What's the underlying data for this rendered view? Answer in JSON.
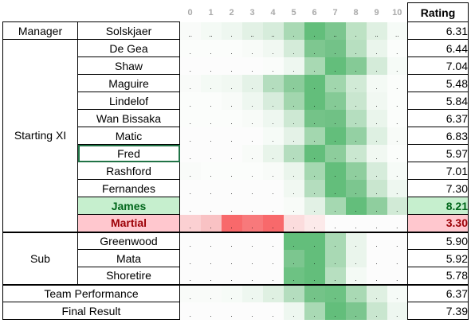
{
  "header": {
    "scores": [
      "0",
      "1",
      "2",
      "3",
      "4",
      "5",
      "6",
      "7",
      "8",
      "9",
      "10"
    ],
    "rating": "Rating"
  },
  "roles": {
    "manager": "Manager",
    "starting": "Starting XI",
    "sub": "Sub"
  },
  "rows": [
    {
      "name": "Solskjaer",
      "rating": "6.31",
      "marks": [
        "..",
        "..",
        ".",
        "..",
        "..",
        " .",
        ".",
        "..",
        ".",
        "..",
        ".."
      ],
      "colors": [
        "#f9fbf9",
        "#f4faf5",
        "#eef7f0",
        "#e2f1e5",
        "#d6ecdb",
        "#a9d9b4",
        "#63be7b",
        "#7cc68f",
        "#bde2c4",
        "#dff0e2",
        "#f6fbf7"
      ]
    },
    {
      "name": "De Gea",
      "rating": "6.44",
      "marks": [
        ".",
        ".",
        ".",
        ".",
        ".",
        ".",
        ".",
        ".",
        ".",
        ".",
        "."
      ],
      "colors": [
        "#fbfdfb",
        "#fbfdfb",
        "#fbfdfb",
        "#f8fbf8",
        "#f1f8f2",
        "#d4ebd9",
        "#7ec790",
        "#73c288",
        "#b7dfc0",
        "#eaf5ec",
        "#fbfdfb"
      ]
    },
    {
      "name": "Shaw",
      "rating": "7.04",
      "marks": [
        ".",
        ".",
        ".",
        ".",
        ".",
        ".",
        ".",
        ".",
        ".",
        ".",
        "."
      ],
      "colors": [
        "#fcfcfc",
        "#fcfcfc",
        "#fcfcfc",
        "#fcfcfc",
        "#fafcfa",
        "#eef7f0",
        "#a8d9b3",
        "#63be7b",
        "#85ca96",
        "#d4ebd9",
        "#f6fbf7"
      ]
    },
    {
      "name": "Maguire",
      "rating": "5.48",
      "marks": [
        ".",
        ".",
        ".",
        ".",
        ".",
        ".",
        ".",
        ".",
        ".",
        ".",
        "."
      ],
      "colors": [
        "#f9fbf9",
        "#f4faf5",
        "#f1f8f2",
        "#e4f2e7",
        "#b4ddbe",
        "#8bcc9b",
        "#63be7b",
        "#a1d6ad",
        "#d1eaD6",
        "#f4faf5",
        "#fbfdfb"
      ]
    },
    {
      "name": "Lindelof",
      "rating": "5.84",
      "marks": [
        ".",
        ".",
        ".",
        ".",
        ".",
        ".",
        ".",
        ".",
        ".",
        ".",
        "."
      ],
      "colors": [
        "#fbfdfb",
        "#fbfdfb",
        "#f8fbf8",
        "#eef7f0",
        "#d7ecdc",
        "#a2d6ae",
        "#63be7b",
        "#85ca96",
        "#c9e6cf",
        "#f1f8f2",
        "#fbfdfb"
      ]
    },
    {
      "name": "Wan Bissaka",
      "rating": "6.37",
      "marks": [
        ".",
        ".",
        ".",
        ".",
        ".",
        ".",
        ".",
        ".",
        ".",
        ".",
        "."
      ],
      "colors": [
        "#fbfdfb",
        "#fbfdfb",
        "#fbfdfb",
        "#f8fbf8",
        "#eef7f0",
        "#cde8d3",
        "#74c388",
        "#70c185",
        "#b5deBf",
        "#eaf5ec",
        "#fbfdfb"
      ]
    },
    {
      "name": "Matic",
      "rating": "6.83",
      "marks": [
        ".",
        ".",
        ".",
        ".",
        ".",
        ".",
        ".",
        ".",
        ".",
        ".",
        "."
      ],
      "colors": [
        "#fcfcfc",
        "#fcfcfc",
        "#fcfcfc",
        "#fcfcfc",
        "#f6fbf7",
        "#e4f2e7",
        "#a3d7af",
        "#63be7b",
        "#94d0a3",
        "#def0e2",
        "#f8fbf8"
      ]
    },
    {
      "name": "Fred",
      "rating": "5.97",
      "selected": true,
      "marks": [
        ".",
        ".",
        ".",
        ".",
        ".",
        ".",
        ".",
        ".",
        ".",
        ".",
        "."
      ],
      "colors": [
        "#fcfcfc",
        "#fcfcfc",
        "#fcfcfc",
        "#f8fbf8",
        "#e8f4ea",
        "#b4ddbe",
        "#63be7b",
        "#8dcd9c",
        "#cae7d0",
        "#f1f8f2",
        "#fbfdfb"
      ]
    },
    {
      "name": "Rashford",
      "rating": "7.01",
      "marks": [
        ".",
        ".",
        ".",
        ".",
        ".",
        ".",
        ".",
        ".",
        ".",
        ".",
        "."
      ],
      "colors": [
        "#f9fbf9",
        "#fbfdfb",
        "#fbfdfb",
        "#fbfdfb",
        "#f8fbf8",
        "#eaf5ec",
        "#a5d8b1",
        "#63be7b",
        "#8fce9e",
        "#d6ecdb",
        "#f6fbf7"
      ]
    },
    {
      "name": "Fernandes",
      "rating": "7.30",
      "marks": [
        ".",
        ".",
        ".",
        ".",
        ".",
        ".",
        ".",
        ".",
        ".",
        ".",
        "."
      ],
      "colors": [
        "#fcfcfc",
        "#fcfcfc",
        "#fcfcfc",
        "#fcfcfc",
        "#fcfcfc",
        "#f1f8f2",
        "#b4ddbe",
        "#63be7b",
        "#7cc68f",
        "#c9e6cf",
        "#eef7f0"
      ]
    },
    {
      "name": "James",
      "rating": "8.21",
      "highlight": "good",
      "marks": [
        ".",
        ".",
        ".",
        ".",
        ".",
        ".",
        ".",
        ".",
        ".",
        ".",
        "."
      ],
      "colors": [
        "#fcfcfc",
        "#fcfcfc",
        "#fcfcfc",
        "#fcfcfc",
        "#fcfcfc",
        "#f8fbf8",
        "#e2f1e5",
        "#a5d8b1",
        "#63be7b",
        "#8fce9e",
        "#d1ead6"
      ]
    },
    {
      "name": "Martial",
      "rating": "3.30",
      "highlight": "bad",
      "marks": [
        ".",
        ".",
        ".",
        ".",
        ".",
        ".",
        ".",
        ".",
        ".",
        ".",
        "."
      ],
      "colors": [
        "#fbd0d2",
        "#f9c2c4",
        "#f8696b",
        "#f8797b",
        "#f8696b",
        "#fbdcdd",
        "#fceaea",
        "#fcfcfc",
        "#fcfcfc",
        "#fcfcfc",
        "#fcfcfc"
      ]
    },
    {
      "name": "Greenwood",
      "rating": "5.90",
      "marks": [
        ".",
        ".",
        ".",
        ".",
        ".",
        ".",
        ".",
        ".",
        ".",
        ".",
        "."
      ],
      "colors": [
        "#fcfcfc",
        "#fcfcfc",
        "#fcfcfc",
        "#fcfcfc",
        "#fcfcfc",
        "#63be7b",
        "#63be7b",
        "#a9d9b4",
        "#eaf5ec",
        "#fcfcfc",
        "#fcfcfc"
      ]
    },
    {
      "name": "Mata",
      "rating": "5.92",
      "marks": [
        ".",
        ".",
        ".",
        ".",
        ".",
        ".",
        ".",
        ".",
        ".",
        ".",
        "."
      ],
      "colors": [
        "#fcfcfc",
        "#fcfcfc",
        "#fcfcfc",
        "#fcfcfc",
        "#fcfcfc",
        "#7cc68f",
        "#63be7b",
        "#a9d9b4",
        "#eaf5ec",
        "#fcfcfc",
        "#fcfcfc"
      ]
    },
    {
      "name": "Shoretire",
      "rating": "5.78",
      "marks": [
        ".",
        ".",
        ".",
        ".",
        ".",
        ".",
        ".",
        ".",
        ".",
        ".",
        "."
      ],
      "colors": [
        "#fcfcfc",
        "#fcfcfc",
        "#fcfcfc",
        "#fcfcfc",
        "#fcfcfc",
        "#6dc283",
        "#63be7b",
        "#b7dfc0",
        "#f4faf5",
        "#fcfcfc",
        "#fcfcfc"
      ]
    },
    {
      "name": "Team Performance",
      "rating": "6.37",
      "marks": [
        ".",
        ".",
        ".",
        ".",
        ".",
        ".",
        ".",
        ".",
        ".",
        ".",
        "."
      ],
      "colors": [
        "#f9fbf9",
        "#f9fbf9",
        "#f6fbf7",
        "#eef7f0",
        "#dff0e2",
        "#b4ddbe",
        "#74c388",
        "#6dc283",
        "#a9d9b4",
        "#dff0e2",
        "#f6fbf7"
      ]
    },
    {
      "name": "Final Result",
      "rating": "7.39",
      "marks": [
        ".",
        ".",
        ".",
        ".",
        ".",
        ".",
        ".",
        ".",
        ".",
        ".",
        "."
      ],
      "colors": [
        "#fcfcfc",
        "#fcfcfc",
        "#fcfcfc",
        "#fcfcfc",
        "#fcfcfc",
        "#eef7f0",
        "#a9d9b4",
        "#63be7b",
        "#7cc68f",
        "#c9e6cf",
        "#eef7f0"
      ]
    }
  ]
}
